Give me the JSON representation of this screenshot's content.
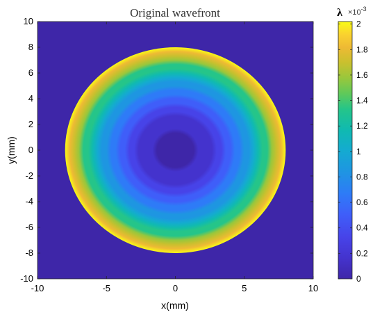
{
  "chart_data": {
    "type": "heatmap",
    "title": "Original wavefront",
    "xlabel": "x(mm)",
    "ylabel": "y(mm)",
    "xlim": [
      -10,
      10
    ],
    "ylim": [
      -10,
      10
    ],
    "x_ticks": [
      -10,
      -5,
      0,
      5,
      10
    ],
    "y_ticks": [
      -10,
      -8,
      -6,
      -4,
      -2,
      0,
      2,
      4,
      6,
      8,
      10
    ],
    "colorbar": {
      "label": "λ",
      "exponent_label": "×10",
      "exponent_power": "-3",
      "range": [
        0,
        2.02
      ],
      "ticks": [
        0,
        0.2,
        0.4,
        0.6,
        0.8,
        1,
        1.2,
        1.4,
        1.6,
        1.8,
        2
      ],
      "colormap": "parula"
    },
    "wavefront": {
      "shape": "circular aperture",
      "aperture_radius_mm": 8,
      "center_mm": [
        0,
        0
      ],
      "value_at_center": 0,
      "value_at_edge": 2.0,
      "profile": "radially increasing (defocus-like)",
      "background_value": 0
    },
    "grid": false
  }
}
